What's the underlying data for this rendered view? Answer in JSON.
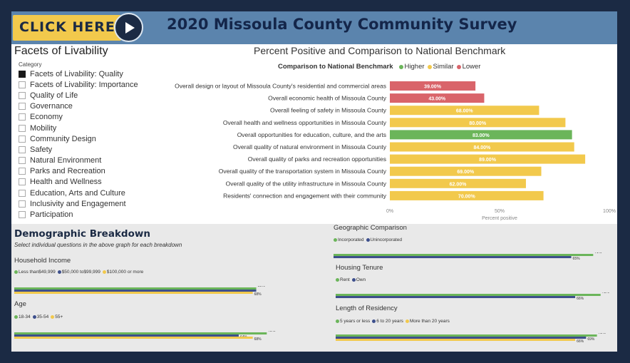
{
  "header": {
    "button_label": "CLICK HERE",
    "title": "2020 Missoula County Community Survey"
  },
  "filter": {
    "title": "Facets of Livability",
    "category_label": "Category",
    "items": [
      {
        "label": "Facets of Livability: Quality",
        "checked": true
      },
      {
        "label": "Facets of Livability: Importance",
        "checked": false
      },
      {
        "label": "Quality of Life",
        "checked": false
      },
      {
        "label": "Governance",
        "checked": false
      },
      {
        "label": "Economy",
        "checked": false
      },
      {
        "label": "Mobility",
        "checked": false
      },
      {
        "label": "Community Design",
        "checked": false
      },
      {
        "label": "Safety",
        "checked": false
      },
      {
        "label": "Natural Environment",
        "checked": false
      },
      {
        "label": "Parks and Recreation",
        "checked": false
      },
      {
        "label": "Health and Wellness",
        "checked": false
      },
      {
        "label": "Education, Arts and Culture",
        "checked": false
      },
      {
        "label": "Inclusivity and Engagement",
        "checked": false
      },
      {
        "label": "Participation",
        "checked": false
      }
    ]
  },
  "main_chart": {
    "title": "Percent Positive and Comparison to National Benchmark",
    "legend_title": "Comparison to National Benchmark",
    "legend": [
      {
        "label": "Higher",
        "color": "#6bb55a"
      },
      {
        "label": "Similar",
        "color": "#f2c94c"
      },
      {
        "label": "Lower",
        "color": "#d9646a"
      }
    ]
  },
  "demographics": {
    "title": "Demographic Breakdown",
    "subtitle": "Select individual questions in the above graph for each breakdown",
    "sections": {
      "income": {
        "title": "Household Income",
        "legend": [
          "Less than$49,999",
          "$50,000 to$99,999",
          "$100,000 or more"
        ]
      },
      "age": {
        "title": "Age",
        "legend": [
          "18-34",
          "35-54",
          "55+"
        ]
      },
      "geo": {
        "title": "Geographic Comparison",
        "legend": [
          "Incorporated",
          "Unincorporated"
        ]
      },
      "housing": {
        "title": "Housing Tenure",
        "legend": [
          "Rent",
          "Own"
        ]
      },
      "residency": {
        "title": "Length of Residency",
        "legend": [
          "5 years or less",
          "6 to 20 years",
          "More than 20 years"
        ]
      }
    }
  },
  "chart_data": [
    {
      "type": "bar",
      "orientation": "horizontal",
      "title": "Percent Positive and Comparison to National Benchmark",
      "xlabel": "Percent positive",
      "xlim": [
        0,
        100
      ],
      "ticks": [
        "0%",
        "50%",
        "100%"
      ],
      "categories": [
        "Overall design or layout of Missoula County's residential and commercial areas",
        "Overall economic health of Missoula County",
        "Overall feeling of safety in Missoula County",
        "Overall health and wellness opportunities in Missoula County",
        "Overall opportunities for education, culture, and the arts",
        "Overall quality of natural environment in Missoula County",
        "Overall quality of parks and recreation opportunities",
        "Overall quality of the transportation system in Missoula County",
        "Overall quality of the utility infrastructure in Missoula County",
        "Residents' connection and engagement with their community"
      ],
      "values": [
        39,
        43,
        68,
        80,
        83,
        84,
        89,
        69,
        62,
        70
      ],
      "value_labels": [
        "39.00%",
        "43.00%",
        "68.00%",
        "80.00%",
        "83.00%",
        "84.00%",
        "89.00%",
        "69.00%",
        "62.00%",
        "70.00%"
      ],
      "benchmark": [
        "Lower",
        "Lower",
        "Similar",
        "Similar",
        "Higher",
        "Similar",
        "Similar",
        "Similar",
        "Similar",
        "Similar"
      ],
      "colors": {
        "Higher": "#6bb55a",
        "Similar": "#f2c94c",
        "Lower": "#d9646a"
      }
    },
    {
      "type": "bar",
      "name": "Household Income",
      "xlim": [
        0,
        100
      ],
      "series": [
        {
          "name": "Less than$49,999",
          "value": 69,
          "label": "69%",
          "color": "#6bb55a"
        },
        {
          "name": "$50,000 to$99,999",
          "value": 69,
          "label": "",
          "color": "#3d4f8c"
        },
        {
          "name": "$100,000 or more",
          "value": 68,
          "label": "68%",
          "color": "#f2c94c"
        }
      ]
    },
    {
      "type": "bar",
      "name": "Age",
      "xlim": [
        0,
        100
      ],
      "series": [
        {
          "name": "18-34",
          "value": 72,
          "label": "72%",
          "color": "#6bb55a"
        },
        {
          "name": "35-54",
          "value": 64,
          "label": "64%",
          "color": "#3d4f8c"
        },
        {
          "name": "55+",
          "value": 68,
          "label": "68%",
          "color": "#f2c94c"
        }
      ]
    },
    {
      "type": "bar",
      "name": "Geographic Comparison",
      "xlim": [
        0,
        100
      ],
      "series": [
        {
          "name": "Incorporated",
          "value": 71,
          "label": "71%",
          "color": "#6bb55a"
        },
        {
          "name": "Unincorporated",
          "value": 65,
          "label": "65%",
          "color": "#3d4f8c"
        }
      ]
    },
    {
      "type": "bar",
      "name": "Housing Tenure",
      "xlim": [
        0,
        100
      ],
      "series": [
        {
          "name": "Rent",
          "value": 73,
          "label": "73%",
          "color": "#6bb55a"
        },
        {
          "name": "Own",
          "value": 66,
          "label": "66%",
          "color": "#3d4f8c"
        }
      ]
    },
    {
      "type": "bar",
      "name": "Length of Residency",
      "xlim": [
        0,
        100
      ],
      "series": [
        {
          "name": "5 years or less",
          "value": 72,
          "label": "72%",
          "color": "#6bb55a"
        },
        {
          "name": "6 to 20 years",
          "value": 69,
          "label": "69%",
          "color": "#3d4f8c"
        },
        {
          "name": "More than 20 years",
          "value": 66,
          "label": "66%",
          "color": "#f2c94c"
        }
      ]
    }
  ]
}
